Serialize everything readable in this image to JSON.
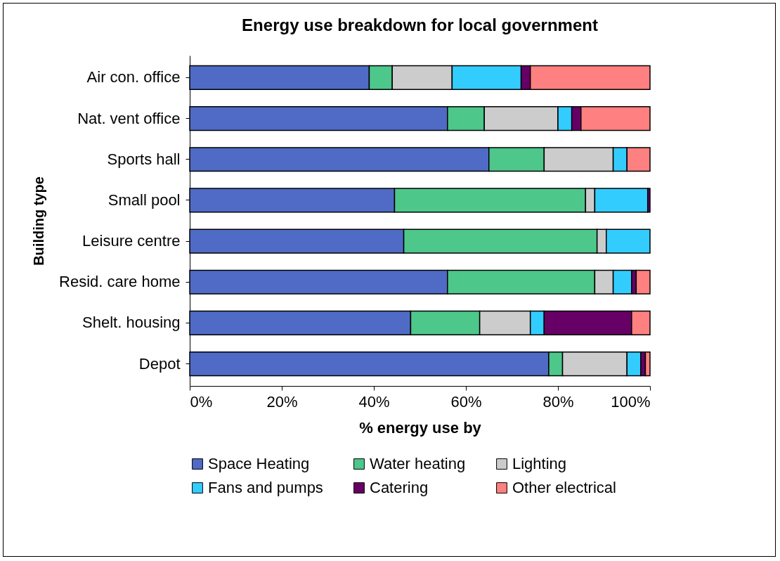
{
  "chart_data": {
    "type": "bar",
    "orientation": "horizontal",
    "stacked": true,
    "title": "Energy use breakdown for local government",
    "xlabel": "% energy use by",
    "ylabel": "Building type",
    "categories": [
      "Air con. office",
      "Nat. vent office",
      "Sports hall",
      "Small pool",
      "Leisure centre",
      "Resid. care home",
      "Shelt. housing",
      "Depot"
    ],
    "series": [
      {
        "name": "Space Heating",
        "color": "#4f6bc6",
        "values": [
          39,
          56,
          65,
          44.5,
          46.5,
          56,
          48,
          78
        ]
      },
      {
        "name": "Water heating",
        "color": "#4dc78a",
        "values": [
          5,
          8,
          12,
          41.5,
          42,
          32,
          15,
          3
        ]
      },
      {
        "name": "Lighting",
        "color": "#cccccc",
        "values": [
          13,
          16,
          15,
          2,
          2,
          4,
          11,
          14
        ]
      },
      {
        "name": "Fans and pumps",
        "color": "#33ccff",
        "values": [
          15,
          3,
          3,
          11.5,
          9.5,
          4,
          3,
          3
        ]
      },
      {
        "name": "Catering",
        "color": "#660066",
        "values": [
          2,
          2,
          0,
          0.5,
          0,
          1,
          19,
          1
        ]
      },
      {
        "name": "Other electrical",
        "color": "#ff8080",
        "values": [
          26,
          15,
          5,
          0,
          0,
          3,
          4,
          1
        ]
      }
    ],
    "xlim": [
      0,
      100
    ],
    "xticks": [
      {
        "value": 0,
        "label": "0%"
      },
      {
        "value": 20,
        "label": "20%"
      },
      {
        "value": 40,
        "label": "40%"
      },
      {
        "value": 60,
        "label": "60%"
      },
      {
        "value": 80,
        "label": "80%"
      },
      {
        "value": 100,
        "label": "100%"
      }
    ],
    "grid": false,
    "legend": "bottom"
  }
}
